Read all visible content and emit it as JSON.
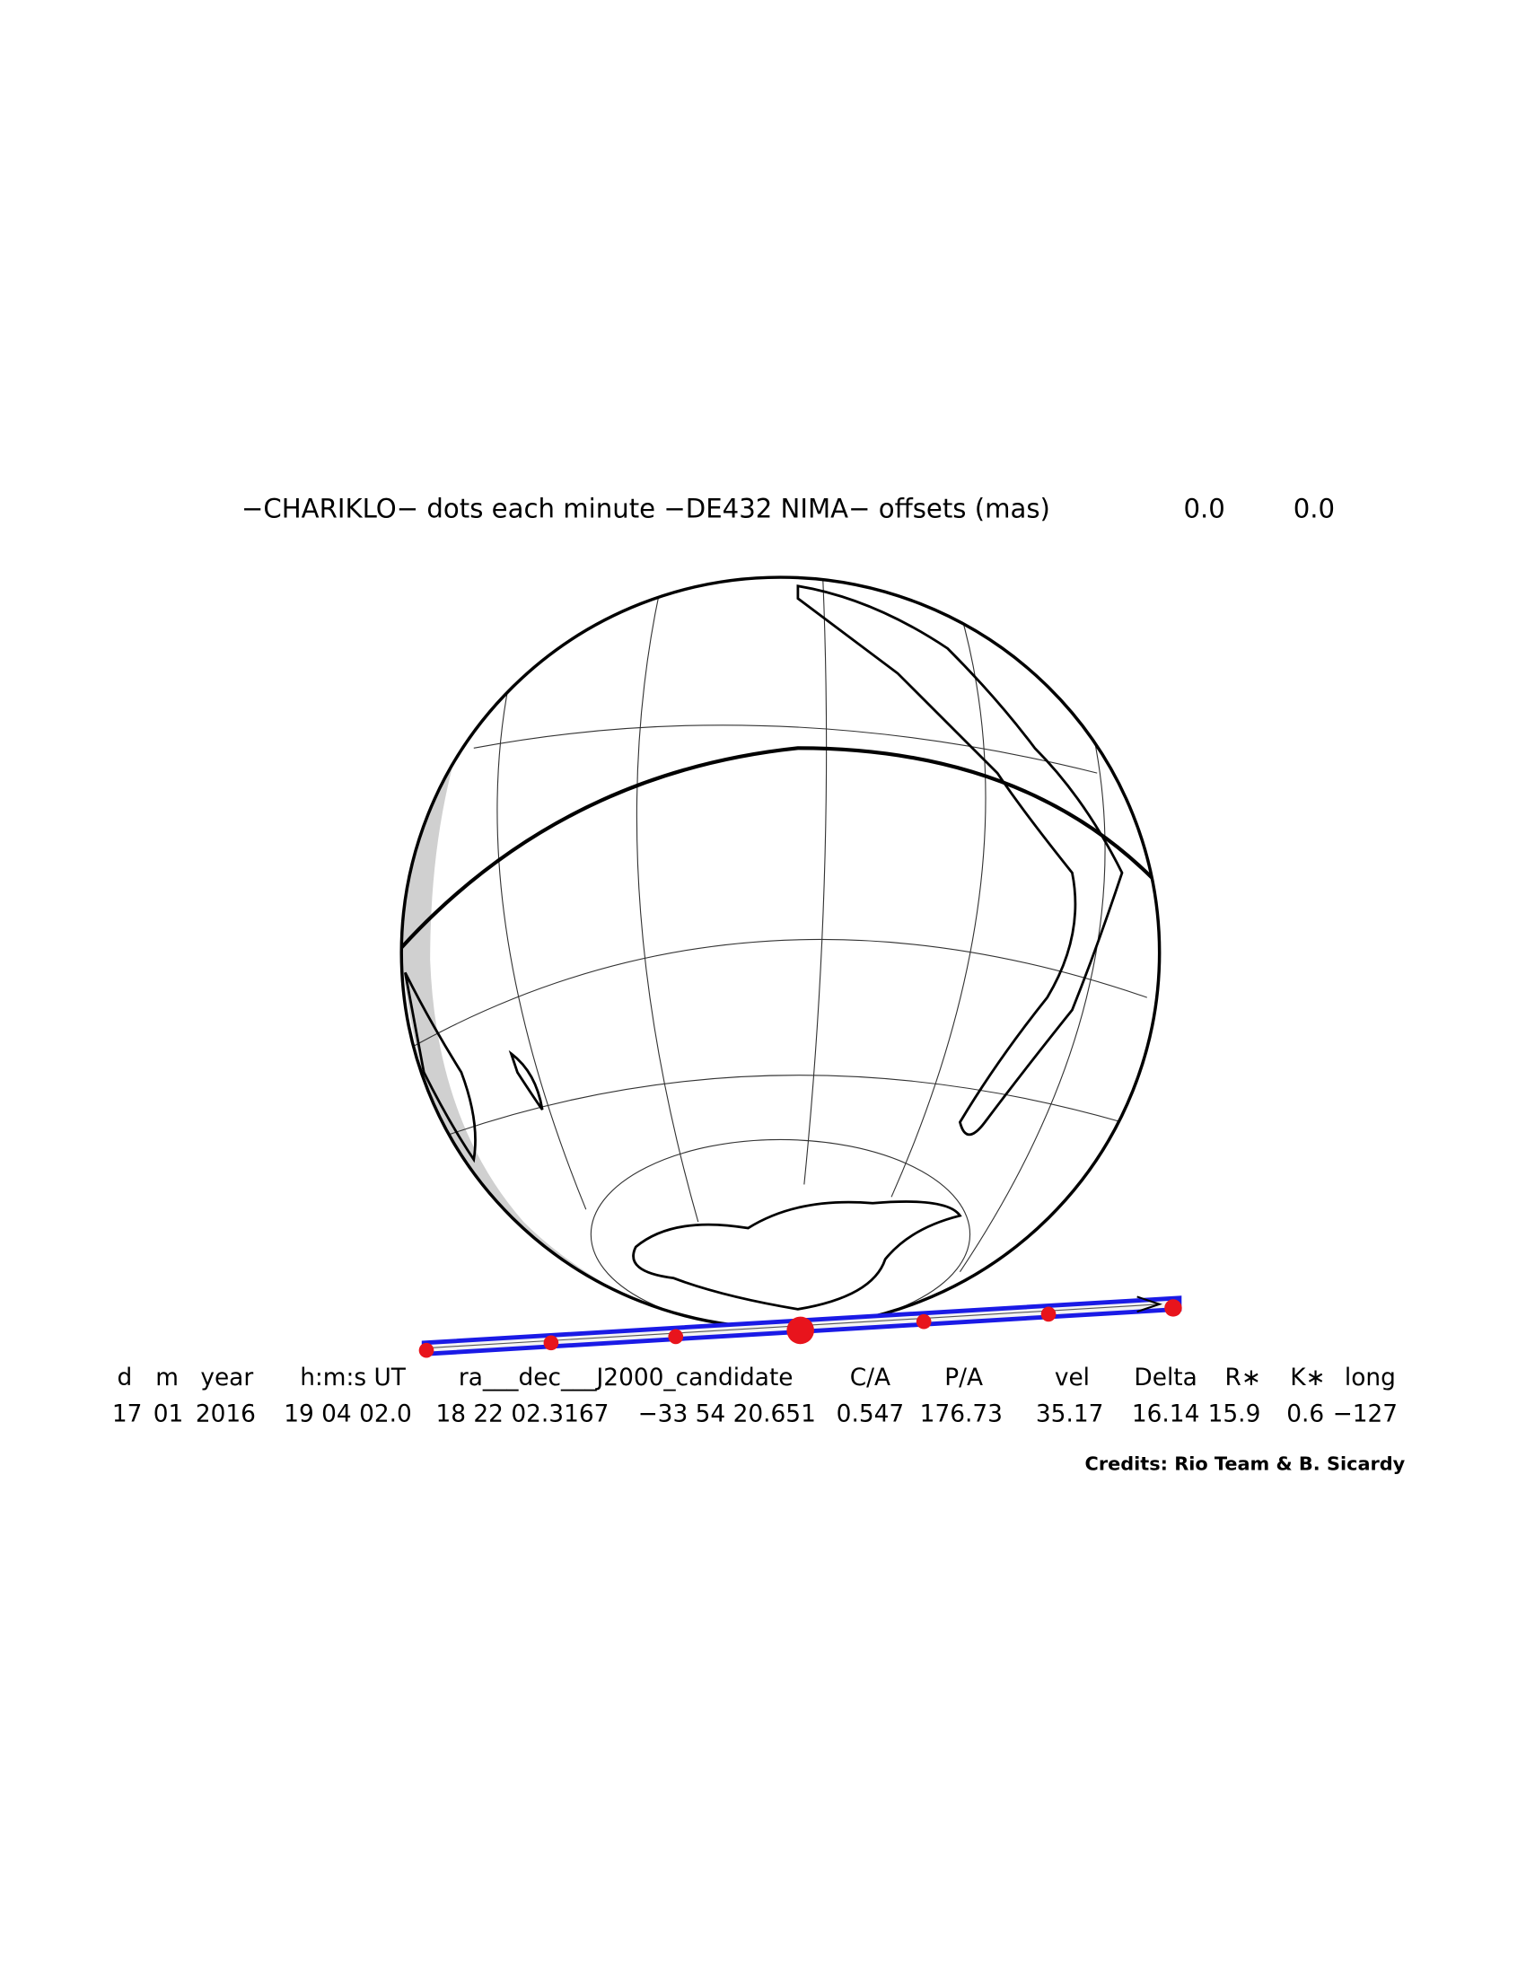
{
  "header": {
    "title": "−CHARIKLO− dots each minute −DE432 NIMA− offsets (mas)",
    "offsets": [
      "0.0",
      "0.0"
    ]
  },
  "table": {
    "columns": [
      "d",
      "m",
      "year",
      "h:m:s UT",
      "ra___dec___J2000_candidate",
      "C/A",
      "P/A",
      "vel",
      "Delta",
      "R∗",
      "K∗",
      "long"
    ],
    "values": [
      "17",
      "01",
      "2016",
      "19 04 02.0",
      "18 22 02.3167",
      "−33 54 20.651",
      "0.547",
      "176.73",
      "35.17",
      "16.14",
      "15.9",
      "0.6",
      "−127"
    ]
  },
  "credits": "Credits: Rio Team & B. Sicardy"
}
